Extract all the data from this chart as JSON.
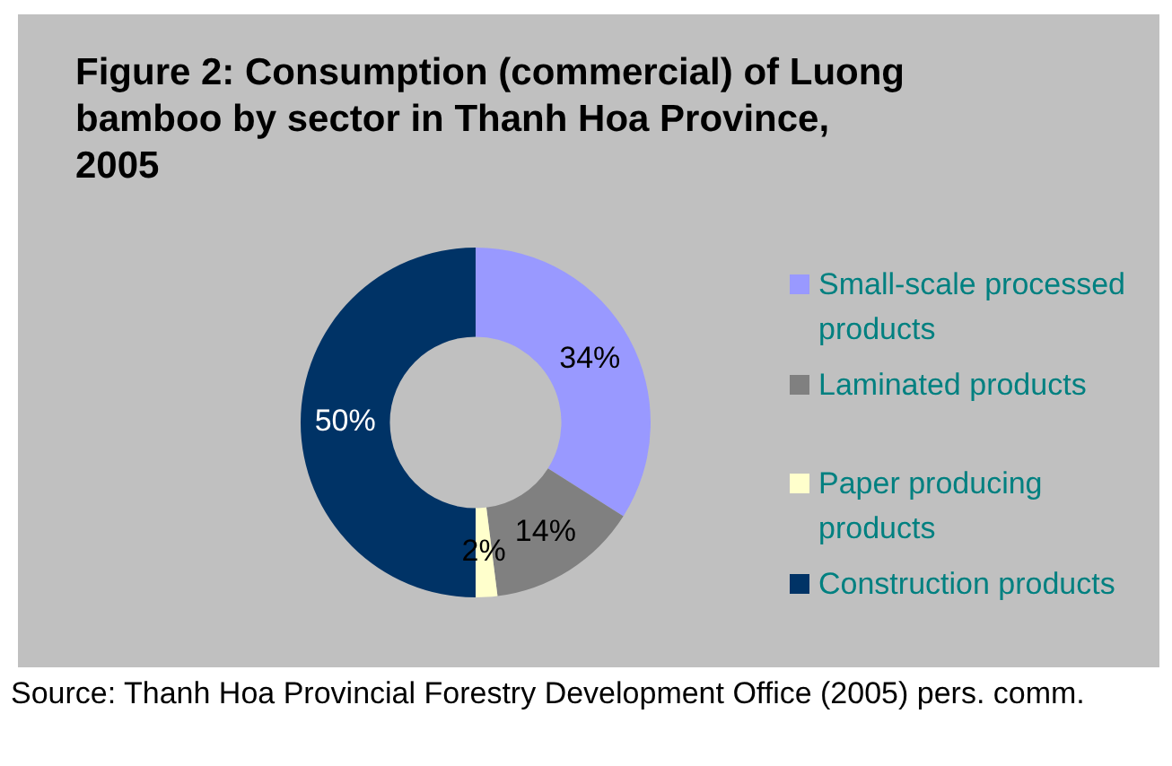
{
  "chart_data": {
    "type": "donut",
    "title": "Figure 2:  Consumption (commercial) of Luong bamboo by sector in Thanh Hoa Province, 2005",
    "categories": [
      "Small-scale processed products",
      "Laminated products",
      "Paper producing products",
      "Construction products"
    ],
    "values": [
      34,
      14,
      2,
      50
    ],
    "colors": [
      "#9999ff",
      "#808080",
      "#ffffcc",
      "#003366"
    ],
    "value_labels": [
      "34%",
      "14%",
      "2%",
      "50%"
    ],
    "legend": "right",
    "annotations": [
      "Source: Thanh Hoa Provincial Forestry Development Office (2005) pers. comm."
    ]
  }
}
